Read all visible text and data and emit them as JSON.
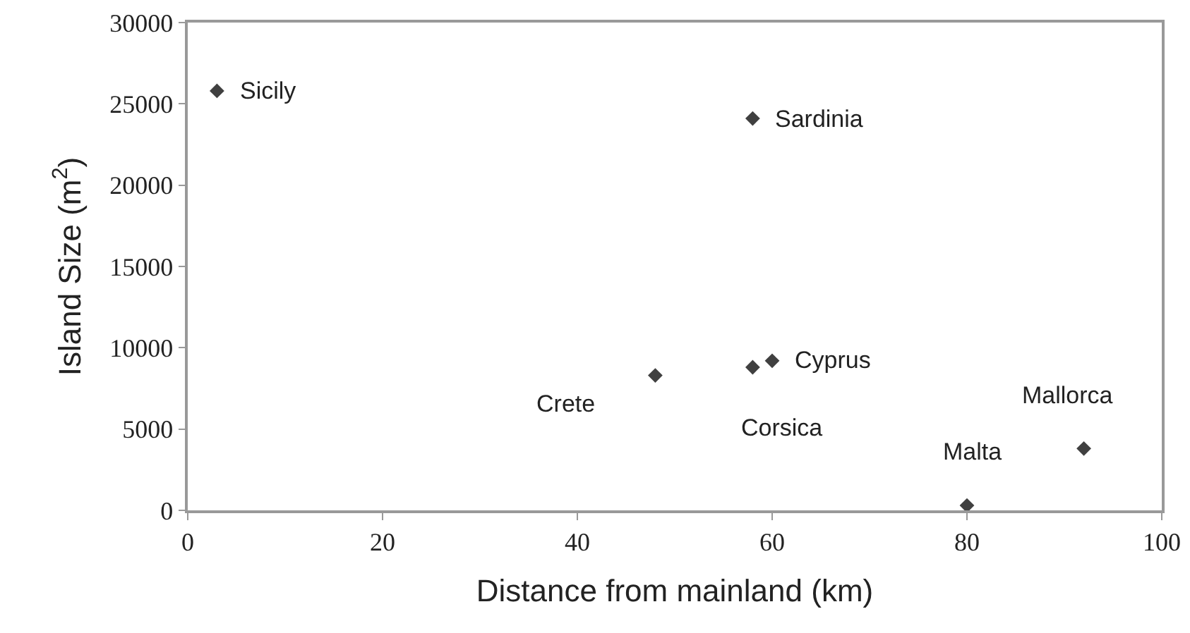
{
  "chart_data": {
    "type": "scatter",
    "xlabel": "Distance from mainland (km)",
    "ylabel": "Island Size (m$^{2}$)",
    "x": [
      3,
      58,
      48,
      58,
      60,
      92,
      80
    ],
    "series": [
      {
        "color": "#404040",
        "values": [
          25800,
          24100,
          8300,
          8800,
          9200,
          3800,
          300
        ]
      }
    ],
    "xlim": [
      0,
      100
    ],
    "xticks": [
      0,
      20,
      40,
      60,
      80,
      100
    ],
    "ylim": [
      0,
      30000
    ],
    "yticks": [
      0,
      5000,
      10000,
      15000,
      20000,
      25000,
      30000
    ],
    "marker": "diamond",
    "annotations": [
      {
        "text": "Sicily",
        "x": 3,
        "y": 25800
      },
      {
        "text": "Sardinia",
        "x": 58,
        "y": 24100
      },
      {
        "text": "Crete",
        "x": 48,
        "y": 8300
      },
      {
        "text": "Corsica",
        "x": 58,
        "y": 8800
      },
      {
        "text": "Cyprus",
        "x": 60,
        "y": 9200
      },
      {
        "text": "Mallorca",
        "x": 92,
        "y": 3800
      },
      {
        "text": "Malta",
        "x": 80,
        "y": 300
      }
    ]
  }
}
